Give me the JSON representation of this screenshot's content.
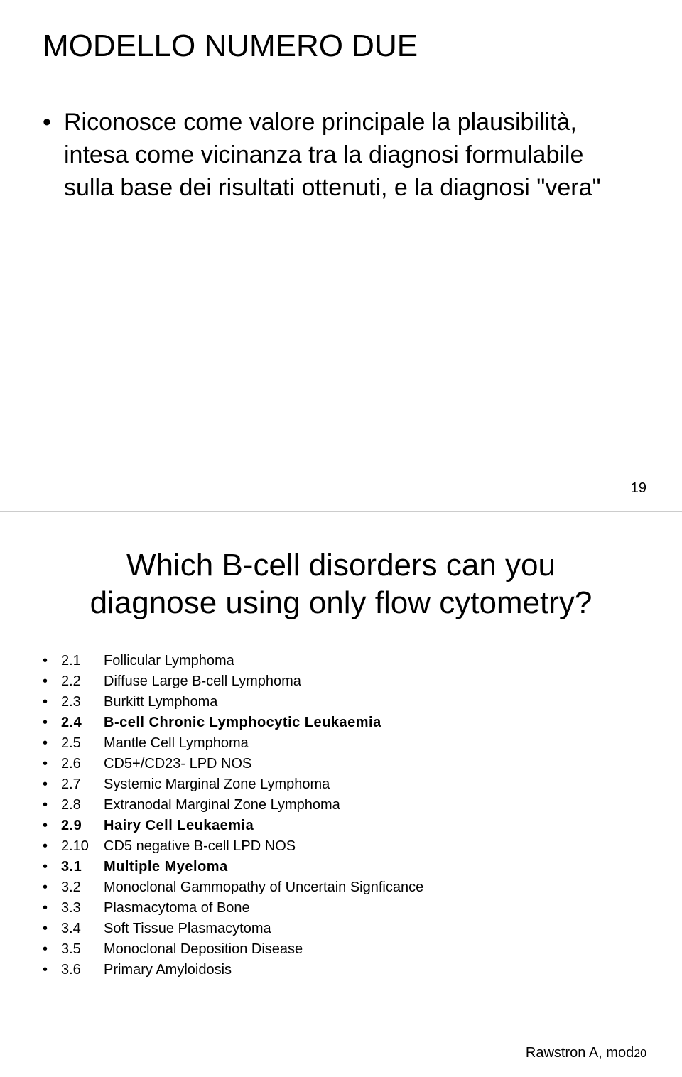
{
  "slide1": {
    "title": "MODELLO NUMERO DUE",
    "body": "Riconosce come valore principale la plausibilità, intesa come vicinanza tra la diagnosi formulabile sulla base dei risultati ottenuti, e la diagnosi \"vera\"",
    "pagenum": "19"
  },
  "slide2": {
    "title_line1": "Which B-cell disorders can you",
    "title_line2": "diagnose using only flow cytometry?",
    "items": [
      {
        "num": "2.1",
        "label": "Follicular Lymphoma",
        "bold": false
      },
      {
        "num": "2.2",
        "label": "Diffuse Large B-cell Lymphoma",
        "bold": false
      },
      {
        "num": "2.3",
        "label": "Burkitt Lymphoma",
        "bold": false
      },
      {
        "num": "2.4",
        "label": "B-cell Chronic Lymphocytic Leukaemia",
        "bold": true
      },
      {
        "num": "2.5",
        "label": "Mantle Cell Lymphoma",
        "bold": false
      },
      {
        "num": "2.6",
        "label": "CD5+/CD23- LPD NOS",
        "bold": false
      },
      {
        "num": "2.7",
        "label": "Systemic Marginal Zone Lymphoma",
        "bold": false
      },
      {
        "num": "2.8",
        "label": "Extranodal Marginal Zone Lymphoma",
        "bold": false
      },
      {
        "num": "2.9",
        "label": "Hairy Cell Leukaemia",
        "bold": true
      },
      {
        "num": "2.10",
        "label": "CD5 negative B-cell LPD NOS",
        "bold": false
      },
      {
        "num": "3.1",
        "label": "Multiple Myeloma",
        "bold": true
      },
      {
        "num": "3.2",
        "label": "Monoclonal Gammopathy of Uncertain Signficance",
        "bold": false
      },
      {
        "num": "3.3",
        "label": "Plasmacytoma of Bone",
        "bold": false
      },
      {
        "num": "3.4",
        "label": "Soft Tissue Plasmacytoma",
        "bold": false
      },
      {
        "num": "3.5",
        "label": "Monoclonal Deposition Disease",
        "bold": false
      },
      {
        "num": "3.6",
        "label": "Primary Amyloidosis",
        "bold": false
      }
    ],
    "attribution": "Rawstron A, mod",
    "pagenum": "20"
  }
}
